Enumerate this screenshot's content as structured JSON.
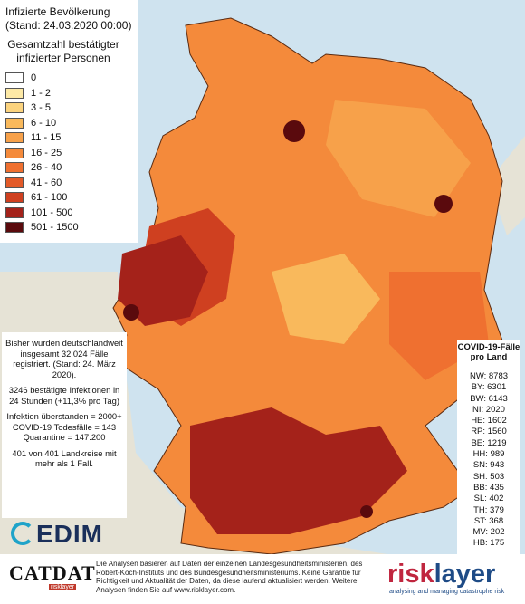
{
  "legend": {
    "title": "Infizierte Bevölkerung",
    "stand": "(Stand: 24.03.2020 00:00)",
    "subtitle1": "Gesamtzahl bestätigter",
    "subtitle2": "infizierter Personen",
    "classes": [
      {
        "label": "0",
        "color": "#ffffff"
      },
      {
        "label": "1 - 2",
        "color": "#fde9a6"
      },
      {
        "label": "3 - 5",
        "color": "#fbd37e"
      },
      {
        "label": "6 - 10",
        "color": "#f9b95c"
      },
      {
        "label": "11 - 15",
        "color": "#f7a14a"
      },
      {
        "label": "16 - 25",
        "color": "#f48a3b"
      },
      {
        "label": "26 - 40",
        "color": "#ef7030"
      },
      {
        "label": "41 - 60",
        "color": "#e35a28"
      },
      {
        "label": "61 - 100",
        "color": "#cf4020"
      },
      {
        "label": "101 - 500",
        "color": "#a4221a"
      },
      {
        "label": "501 - 1500",
        "color": "#5a0a0d"
      }
    ]
  },
  "info": {
    "p1": "Bisher wurden deutschlandweit insgesamt 32.024 Fälle registriert. (Stand: 24. März 2020).",
    "p2": "3246 bestätigte Infektionen in 24 Stunden (+11,3% pro Tag)",
    "p3": "Infektion überstanden = 2000+ COVID-19 Todesfälle = 143 Quarantine = 147.200",
    "p4": "401 von 401 Landkreise mit mehr als 1 Fall."
  },
  "states": {
    "title": "COVID-19-Fälle pro Land",
    "items": [
      "NW: 8783",
      "BY: 6301",
      "BW: 6143",
      "NI: 2020",
      "HE: 1602",
      "RP: 1560",
      "BE: 1219",
      "HH: 989",
      "SN: 943",
      "SH: 503",
      "BB: 435",
      "SL: 402",
      "TH: 379",
      "ST: 368",
      "MV: 202",
      "HB: 175"
    ]
  },
  "footer": {
    "disclaimer": "Die Analysen basieren auf Daten der einzelnen Landesgesundheitsministerien, des Robert-Koch-Instituts und des Bundesgesundheitsministeriums. Keine Garantie für Richtigkeit und Aktualität der Daten, da diese laufend aktualisiert werden. Weitere Analysen finden Sie auf www.risklayer.com.",
    "cedim": "EDIM",
    "catdat": "CATDAT",
    "catdat_sub": "risklayer",
    "risk_a": "risk",
    "risk_b": "layer",
    "risk_sub": "analysing and managing catastrophe risk"
  }
}
